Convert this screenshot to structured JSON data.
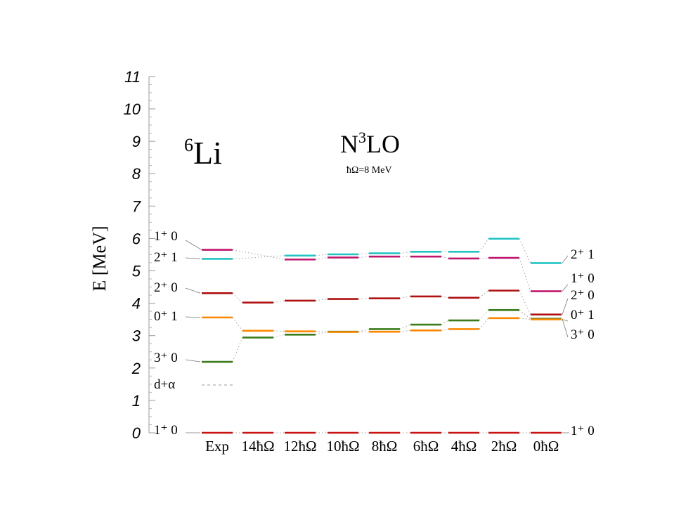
{
  "chart_data": {
    "type": "level-scheme",
    "title": "⁶Li",
    "title_parts": {
      "sup": "6",
      "main": "Li"
    },
    "subtitle_parts": {
      "main1": "N",
      "sup": "3",
      "main2": "LO"
    },
    "subtitle": "N³LO",
    "note": "ħΩ=8 MeV",
    "ylabel": "E [MeV]",
    "ylim": [
      0,
      11
    ],
    "yticks": [
      "0",
      "1",
      "2",
      "3",
      "4",
      "5",
      "6",
      "7",
      "8",
      "9",
      "10",
      "11"
    ],
    "categories": [
      "Exp",
      "14ħΩ",
      "12ħΩ",
      "10ħΩ",
      "8ħΩ",
      "6ħΩ",
      "4ħΩ",
      "2ħΩ",
      "0ħΩ"
    ],
    "threshold": {
      "label": "d+α",
      "energy": 1.475
    },
    "series": [
      {
        "state": "1+ 0 (g.s.)",
        "color": "#cc1111",
        "values": [
          0.0,
          0.0,
          0.0,
          0.0,
          0.0,
          0.0,
          0.0,
          0.0,
          0.0
        ]
      },
      {
        "state": "3+ 0",
        "color": "#3a7d1a",
        "values": [
          2.19,
          2.94,
          3.03,
          3.12,
          3.2,
          3.34,
          3.47,
          3.79,
          3.52
        ]
      },
      {
        "state": "0+ 1",
        "color": "#ff8800",
        "values": [
          3.56,
          3.15,
          3.13,
          3.11,
          3.12,
          3.16,
          3.2,
          3.54,
          3.5
        ]
      },
      {
        "state": "2+ 0",
        "color": "#b01010",
        "values": [
          4.31,
          4.02,
          4.08,
          4.13,
          4.15,
          4.21,
          4.17,
          4.39,
          3.65
        ]
      },
      {
        "state": "2+ 1",
        "color": "#22c4c4",
        "values": [
          5.37,
          null,
          5.47,
          5.51,
          5.54,
          5.59,
          5.59,
          5.99,
          5.24
        ]
      },
      {
        "state": "1+ 0",
        "color": "#c0166e",
        "values": [
          5.65,
          null,
          5.35,
          5.41,
          5.44,
          5.44,
          5.38,
          5.4,
          4.37
        ]
      }
    ],
    "left_labels": [
      {
        "text": "1⁺ 0",
        "state": "1+ 0"
      },
      {
        "text": "2⁺ 1",
        "state": "2+ 1"
      },
      {
        "text": "2⁺ 0",
        "state": "2+ 0"
      },
      {
        "text": "0⁺ 1",
        "state": "0+ 1"
      },
      {
        "text": "3⁺ 0",
        "state": "3+ 0"
      },
      {
        "text": "d+α",
        "state": "threshold"
      },
      {
        "text": "1⁺ 0",
        "state": "1+ 0 (g.s.)"
      }
    ],
    "right_labels": [
      {
        "text": "2⁺ 1",
        "state": "2+ 1"
      },
      {
        "text": "1⁺ 0",
        "state": "1+ 0"
      },
      {
        "text": "2⁺ 0",
        "state": "2+ 0"
      },
      {
        "text": "0⁺ 1",
        "state": "0+ 1"
      },
      {
        "text": "3⁺ 0",
        "state": "3+ 0"
      },
      {
        "text": "1⁺ 0",
        "state": "1+ 0 (g.s.)"
      }
    ]
  }
}
